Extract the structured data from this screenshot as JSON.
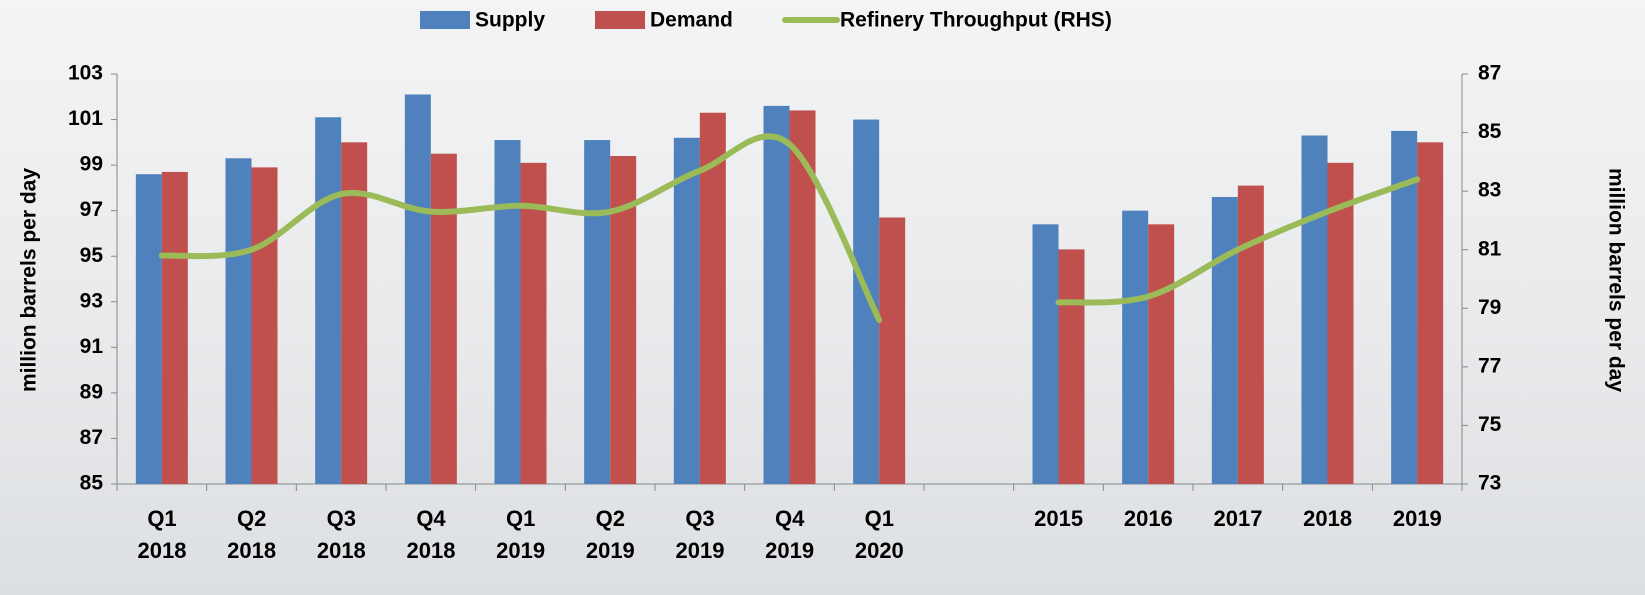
{
  "chart_data": {
    "type": "bar",
    "categories": [
      "Q1\n2018",
      "Q2\n2018",
      "Q3\n2018",
      "Q4\n2018",
      "Q1\n2019",
      "Q2\n2019",
      "Q3\n2019",
      "Q4\n2019",
      "Q1\n2020",
      null,
      "2015",
      "2016",
      "2017",
      "2018",
      "2019"
    ],
    "series": [
      {
        "name": "Supply",
        "color": "#4f81bd",
        "type": "bar",
        "values": [
          98.6,
          99.3,
          101.1,
          102.1,
          100.1,
          100.1,
          100.2,
          101.6,
          101.0,
          null,
          96.4,
          97.0,
          97.6,
          100.3,
          100.5
        ]
      },
      {
        "name": "Demand",
        "color": "#c0504d",
        "type": "bar",
        "values": [
          98.7,
          98.9,
          100.0,
          99.5,
          99.1,
          99.4,
          101.3,
          101.4,
          96.7,
          null,
          95.3,
          96.4,
          98.1,
          99.1,
          100.0
        ]
      },
      {
        "name": "Refinery Throughput (RHS)",
        "color": "#9bbb59",
        "type": "line",
        "axis": "y2",
        "values": [
          80.8,
          81.0,
          82.9,
          82.3,
          82.5,
          82.3,
          83.7,
          84.6,
          78.6,
          null,
          79.2,
          79.4,
          81.0,
          82.3,
          83.4
        ]
      }
    ],
    "y_label": "million barrels per day",
    "y2_label": "million barrels per day",
    "ylim": [
      85,
      103
    ],
    "yticks": [
      85,
      87,
      89,
      91,
      93,
      95,
      97,
      99,
      101,
      103
    ],
    "y2lim": [
      73,
      87
    ],
    "y2ticks": [
      73,
      75,
      77,
      79,
      81,
      83,
      85,
      87
    ],
    "legend": "top"
  }
}
